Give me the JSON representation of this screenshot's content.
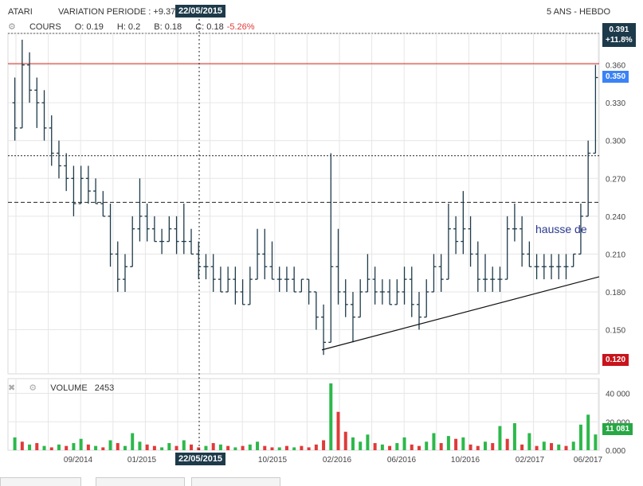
{
  "header": {
    "symbol": "ATARI",
    "variation_label": "VARIATION PERIODE : +9.37",
    "cursor_date": "22/05/2015",
    "period": "5 ANS - HEBDO"
  },
  "price_panel": {
    "series_name": "COURS",
    "o": "O: 0.19",
    "h": "H: 0.2",
    "b": "B: 0.18",
    "c": "C: 0.18",
    "c_change": "-5.26%",
    "top_badge_price": "0.391",
    "top_badge_change": "+11.8%",
    "last_price_badge": "0.350",
    "low_badge": "0.120",
    "annotation": "hausse de"
  },
  "volume_panel": {
    "label": "VOLUME",
    "cursor_value": "2453",
    "last_badge": "11 081"
  },
  "colors": {
    "ohlc": "#1d3a4a",
    "volume_up": "#2db84b",
    "volume_down": "#e03a3a",
    "resistance_line": "#d9251c",
    "badge_dark": "#1d3a4a",
    "badge_blue": "#3b82f6",
    "badge_red": "#c8141b",
    "badge_green": "#27a844",
    "annotation": "#2b3a8f"
  },
  "chart_data": {
    "type": "ohlc",
    "frequency": "weekly",
    "y_ticks": [
      "0.360",
      "0.330",
      "0.300",
      "0.270",
      "0.240",
      "0.210",
      "0.180",
      "0.150"
    ],
    "ylim": [
      0.115,
      0.385
    ],
    "x_ticks": [
      "09/2014",
      "01/2015",
      "10/2015",
      "02/2016",
      "06/2016",
      "10/2016",
      "02/2017",
      "06/2017"
    ],
    "volume_ticks": [
      "40 000",
      "20 000",
      "0.000"
    ],
    "volume_ylim": [
      0,
      47000
    ],
    "horizontal_lines": [
      {
        "style": "solid",
        "color": "red",
        "value": 0.361
      },
      {
        "style": "dotted",
        "value": 0.288
      },
      {
        "style": "dashed",
        "value": 0.251
      }
    ],
    "trendline": {
      "from": {
        "x": "12/2015",
        "y": 0.134
      },
      "to": {
        "x": "06/2017",
        "y": 0.192
      }
    },
    "cursor_date": "22/05/2015",
    "series": [
      {
        "name": "COURS",
        "bars": [
          [
            0.33,
            0.35,
            0.3,
            0.31
          ],
          [
            0.31,
            0.38,
            0.31,
            0.36
          ],
          [
            0.36,
            0.37,
            0.33,
            0.34
          ],
          [
            0.34,
            0.35,
            0.31,
            0.33
          ],
          [
            0.33,
            0.34,
            0.3,
            0.31
          ],
          [
            0.31,
            0.32,
            0.28,
            0.29
          ],
          [
            0.29,
            0.3,
            0.27,
            0.28
          ],
          [
            0.28,
            0.29,
            0.26,
            0.27
          ],
          [
            0.27,
            0.28,
            0.24,
            0.25
          ],
          [
            0.25,
            0.28,
            0.25,
            0.27
          ],
          [
            0.27,
            0.28,
            0.25,
            0.26
          ],
          [
            0.26,
            0.27,
            0.25,
            0.25
          ],
          [
            0.25,
            0.26,
            0.24,
            0.24
          ],
          [
            0.24,
            0.25,
            0.2,
            0.21
          ],
          [
            0.21,
            0.22,
            0.18,
            0.19
          ],
          [
            0.19,
            0.21,
            0.18,
            0.2
          ],
          [
            0.2,
            0.24,
            0.2,
            0.23
          ],
          [
            0.23,
            0.27,
            0.22,
            0.24
          ],
          [
            0.24,
            0.25,
            0.22,
            0.23
          ],
          [
            0.23,
            0.24,
            0.22,
            0.22
          ],
          [
            0.22,
            0.23,
            0.21,
            0.22
          ],
          [
            0.22,
            0.24,
            0.22,
            0.23
          ],
          [
            0.23,
            0.24,
            0.21,
            0.22
          ],
          [
            0.22,
            0.25,
            0.21,
            0.22
          ],
          [
            0.22,
            0.23,
            0.21,
            0.21
          ],
          [
            0.21,
            0.22,
            0.19,
            0.2
          ],
          [
            0.2,
            0.21,
            0.19,
            0.2
          ],
          [
            0.2,
            0.21,
            0.18,
            0.19
          ],
          [
            0.19,
            0.2,
            0.18,
            0.18
          ],
          [
            0.18,
            0.2,
            0.18,
            0.19
          ],
          [
            0.19,
            0.2,
            0.17,
            0.18
          ],
          [
            0.18,
            0.19,
            0.17,
            0.17
          ],
          [
            0.17,
            0.2,
            0.17,
            0.19
          ],
          [
            0.19,
            0.23,
            0.19,
            0.21
          ],
          [
            0.21,
            0.23,
            0.19,
            0.2
          ],
          [
            0.2,
            0.22,
            0.19,
            0.19
          ],
          [
            0.19,
            0.2,
            0.18,
            0.19
          ],
          [
            0.19,
            0.2,
            0.18,
            0.19
          ],
          [
            0.19,
            0.2,
            0.18,
            0.18
          ],
          [
            0.18,
            0.19,
            0.18,
            0.19
          ],
          [
            0.19,
            0.19,
            0.17,
            0.18
          ],
          [
            0.18,
            0.18,
            0.15,
            0.16
          ],
          [
            0.16,
            0.17,
            0.13,
            0.14
          ],
          [
            0.14,
            0.29,
            0.14,
            0.2
          ],
          [
            0.2,
            0.23,
            0.17,
            0.18
          ],
          [
            0.18,
            0.19,
            0.16,
            0.17
          ],
          [
            0.17,
            0.18,
            0.14,
            0.16
          ],
          [
            0.16,
            0.19,
            0.16,
            0.18
          ],
          [
            0.18,
            0.21,
            0.18,
            0.19
          ],
          [
            0.19,
            0.2,
            0.17,
            0.18
          ],
          [
            0.18,
            0.19,
            0.17,
            0.18
          ],
          [
            0.18,
            0.19,
            0.17,
            0.17
          ],
          [
            0.17,
            0.19,
            0.17,
            0.18
          ],
          [
            0.18,
            0.2,
            0.17,
            0.19
          ],
          [
            0.19,
            0.2,
            0.16,
            0.17
          ],
          [
            0.17,
            0.18,
            0.15,
            0.16
          ],
          [
            0.16,
            0.19,
            0.16,
            0.18
          ],
          [
            0.18,
            0.21,
            0.18,
            0.2
          ],
          [
            0.2,
            0.21,
            0.18,
            0.19
          ],
          [
            0.19,
            0.25,
            0.19,
            0.23
          ],
          [
            0.23,
            0.24,
            0.21,
            0.22
          ],
          [
            0.22,
            0.26,
            0.21,
            0.23
          ],
          [
            0.23,
            0.24,
            0.2,
            0.21
          ],
          [
            0.21,
            0.22,
            0.18,
            0.19
          ],
          [
            0.19,
            0.21,
            0.18,
            0.19
          ],
          [
            0.19,
            0.2,
            0.18,
            0.19
          ],
          [
            0.19,
            0.2,
            0.18,
            0.19
          ],
          [
            0.19,
            0.24,
            0.19,
            0.23
          ],
          [
            0.23,
            0.25,
            0.22,
            0.23
          ],
          [
            0.23,
            0.24,
            0.2,
            0.21
          ],
          [
            0.21,
            0.22,
            0.2,
            0.2
          ],
          [
            0.2,
            0.21,
            0.19,
            0.2
          ],
          [
            0.2,
            0.21,
            0.19,
            0.2
          ],
          [
            0.2,
            0.21,
            0.19,
            0.2
          ],
          [
            0.2,
            0.21,
            0.19,
            0.2
          ],
          [
            0.2,
            0.21,
            0.19,
            0.2
          ],
          [
            0.2,
            0.21,
            0.2,
            0.21
          ],
          [
            0.21,
            0.25,
            0.21,
            0.24
          ],
          [
            0.24,
            0.3,
            0.24,
            0.29
          ],
          [
            0.29,
            0.36,
            0.29,
            0.35
          ]
        ]
      },
      {
        "name": "VOLUME",
        "values": [
          9000,
          6000,
          4000,
          5000,
          3000,
          2000,
          4000,
          3000,
          5000,
          8000,
          4000,
          3000,
          2000,
          7000,
          5000,
          3000,
          12000,
          6000,
          4000,
          3000,
          2000,
          5000,
          3000,
          7000,
          4000,
          2000,
          3000,
          5000,
          4000,
          3000,
          2000,
          3000,
          4000,
          6000,
          3000,
          2000,
          2000,
          3000,
          2000,
          3000,
          2000,
          4000,
          7000,
          47000,
          27000,
          13000,
          9000,
          6000,
          11000,
          5000,
          4000,
          3000,
          5000,
          9000,
          4000,
          3000,
          6000,
          12000,
          5000,
          10000,
          8000,
          9000,
          4000,
          3000,
          6000,
          5000,
          17000,
          8000,
          19000,
          4000,
          12000,
          3000,
          6000,
          5000,
          4000,
          3000,
          6000,
          18000,
          25000,
          11081
        ],
        "up": [
          true,
          false,
          true,
          false,
          true,
          false,
          true,
          false,
          true,
          true,
          false,
          true,
          false,
          true,
          false,
          true,
          true,
          true,
          false,
          false,
          true,
          true,
          false,
          true,
          false,
          false,
          true,
          false,
          true,
          false,
          true,
          false,
          true,
          true,
          false,
          false,
          true,
          false,
          true,
          false,
          false,
          false,
          false,
          true,
          false,
          false,
          true,
          true,
          true,
          false,
          true,
          false,
          true,
          true,
          false,
          false,
          true,
          true,
          false,
          true,
          false,
          true,
          false,
          false,
          true,
          false,
          true,
          false,
          true,
          false,
          true,
          false,
          true,
          false,
          true,
          false,
          true,
          true,
          true,
          true
        ]
      }
    ]
  }
}
